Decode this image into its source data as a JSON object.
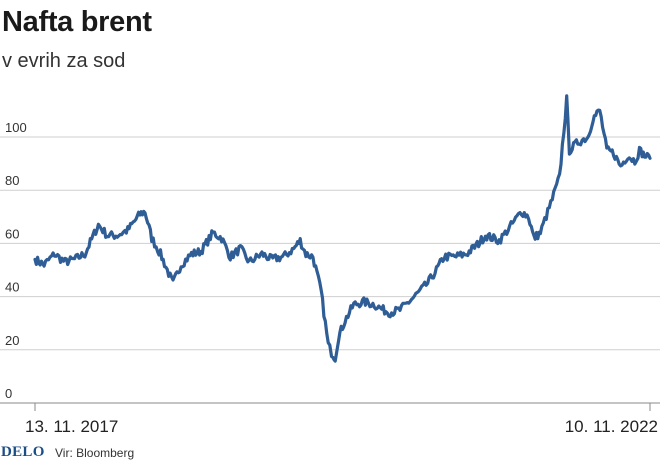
{
  "header": {
    "title": "Nafta brent",
    "subtitle": "v evrih za sod"
  },
  "footer": {
    "logo": "DELO",
    "source": "Vir: Bloomberg"
  },
  "colors": {
    "line": "#2f5d95",
    "grid": "#cfcfcf",
    "axis": "#888888",
    "logo": "#1c4e86"
  },
  "chart_data": {
    "type": "line",
    "title": "Nafta brent",
    "subtitle": "v evrih za sod",
    "xlabel": "",
    "ylabel": "",
    "ylim": [
      0,
      120
    ],
    "yticks": [
      0,
      20,
      40,
      60,
      80,
      100
    ],
    "xtick_labels": [
      "13. 11. 2017",
      "10. 11. 2022"
    ],
    "grid": true,
    "legend": "none",
    "series": [
      {
        "x": [
          "2017-11-13",
          "2017-12-10",
          "2018-01-10",
          "2018-02-10",
          "2018-03-10",
          "2018-04-10",
          "2018-05-20",
          "2018-06-15",
          "2018-07-15",
          "2018-08-15",
          "2018-09-20",
          "2018-10-05",
          "2018-10-25",
          "2018-11-20",
          "2018-12-10",
          "2018-12-27",
          "2019-01-20",
          "2019-02-20",
          "2019-03-20",
          "2019-04-25",
          "2019-05-20",
          "2019-06-15",
          "2019-07-15",
          "2019-08-10",
          "2019-09-17",
          "2019-10-15",
          "2019-11-20",
          "2019-12-20",
          "2020-01-08",
          "2020-01-25",
          "2020-02-15",
          "2020-03-10",
          "2020-03-31",
          "2020-04-10",
          "2020-04-21",
          "2020-05-01",
          "2020-05-20",
          "2020-06-15",
          "2020-07-15",
          "2020-08-15",
          "2020-09-10",
          "2020-10-01",
          "2020-10-30",
          "2020-11-25",
          "2020-12-20",
          "2021-01-20",
          "2021-02-15",
          "2021-03-10",
          "2021-04-10",
          "2021-05-15",
          "2021-06-20",
          "2021-07-10",
          "2021-08-20",
          "2021-09-20",
          "2021-10-25",
          "2021-11-15",
          "2021-12-01",
          "2021-12-20",
          "2022-01-20",
          "2022-02-15",
          "2022-03-08",
          "2022-03-16",
          "2022-04-10",
          "2022-05-10",
          "2022-05-25",
          "2022-06-14",
          "2022-07-05",
          "2022-07-25",
          "2022-08-15",
          "2022-09-05",
          "2022-09-26",
          "2022-10-10",
          "2022-10-25",
          "2022-11-10"
        ],
        "y": [
          54,
          52,
          56,
          53,
          54,
          56,
          67,
          63,
          63,
          65,
          71,
          72,
          62,
          56,
          50,
          45,
          52,
          56,
          57,
          64,
          62,
          55,
          58,
          53,
          56,
          54,
          55,
          58,
          61,
          56,
          55,
          42,
          22,
          19,
          17,
          25,
          31,
          37,
          38,
          37,
          35,
          34,
          35,
          38,
          41,
          45,
          50,
          55,
          55,
          56,
          60,
          63,
          61,
          66,
          72,
          70,
          62,
          64,
          75,
          85,
          114,
          95,
          98,
          100,
          107,
          110,
          95,
          94,
          89,
          93,
          91,
          95,
          93,
          92
        ]
      }
    ]
  }
}
